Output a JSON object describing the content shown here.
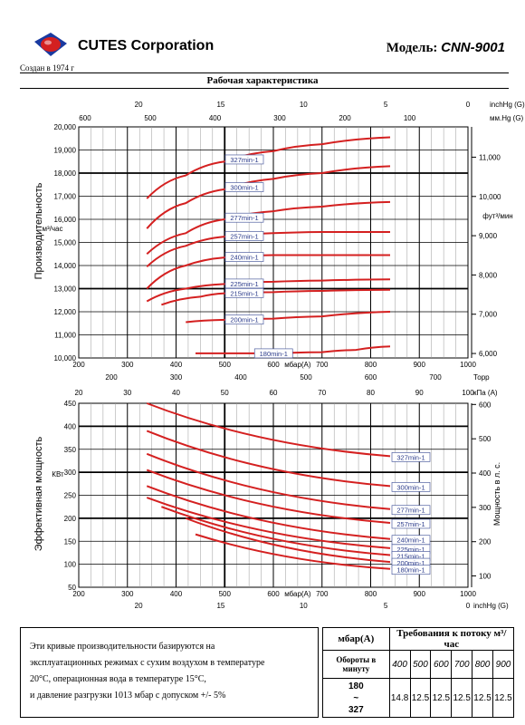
{
  "header": {
    "company": "CUTES Corporation",
    "founded": "Создан в 1974 г",
    "model_label": "Модель:",
    "model_value": "CNN-9001",
    "page_title": "Рабочая характеристика"
  },
  "colors": {
    "curve": "#d42020",
    "grid": "#000000",
    "logo_blue": "#1a3aa0",
    "logo_red": "#d42020"
  },
  "chart_data": [
    {
      "type": "line",
      "ylabel": "Производительность",
      "left_unit": "м³/час",
      "right_unit": "фут³/мин",
      "xlim": [
        200,
        1000
      ],
      "ylim": [
        10000,
        20000
      ],
      "x_ticks": [
        "200",
        "300",
        "400",
        "500",
        "600",
        "700",
        "800",
        "900",
        "1000"
      ],
      "x_axis_label": "мбар(А)",
      "y_ticks": [
        "10,000",
        "11,000",
        "12,000",
        "13,000",
        "14,000",
        "15,000",
        "16,000",
        "17,000",
        "18,000",
        "19,000",
        "20,000"
      ],
      "right_ticks": [
        {
          "label": "6,000",
          "y": 10194
        },
        {
          "label": "7,000",
          "y": 11893
        },
        {
          "label": "8,000",
          "y": 13592
        },
        {
          "label": "9,000",
          "y": 15291
        },
        {
          "label": "10,000",
          "y": 16990
        },
        {
          "label": "11,000",
          "y": 18689
        }
      ],
      "top_axis_inchHg": {
        "unit": "inchHg (G)",
        "ticks": [
          {
            "label": "20",
            "x": 323
          },
          {
            "label": "15",
            "x": 492
          },
          {
            "label": "10",
            "x": 662
          },
          {
            "label": "5",
            "x": 831
          },
          {
            "label": "0",
            "x": 1000
          }
        ]
      },
      "top_axis_mmHg": {
        "unit": "мм.Hg (G)",
        "ticks": [
          {
            "label": "600",
            "x": 213
          },
          {
            "label": "500",
            "x": 347
          },
          {
            "label": "400",
            "x": 480
          },
          {
            "label": "300",
            "x": 613
          },
          {
            "label": "200",
            "x": 747
          },
          {
            "label": "100",
            "x": 880
          }
        ]
      },
      "bottom_torr": {
        "unit": "Торр",
        "ticks": [
          {
            "label": "200",
            "x": 267
          },
          {
            "label": "300",
            "x": 400
          },
          {
            "label": "400",
            "x": 533
          },
          {
            "label": "500",
            "x": 667
          },
          {
            "label": "600",
            "x": 800
          },
          {
            "label": "700",
            "x": 933
          }
        ]
      },
      "series": [
        {
          "name": "327min-1",
          "x": [
            340,
            420,
            500,
            600,
            700,
            840
          ],
          "y": [
            16900,
            17900,
            18500,
            18950,
            19250,
            19550
          ]
        },
        {
          "name": "300min-1",
          "x": [
            340,
            420,
            500,
            600,
            700,
            840
          ],
          "y": [
            15600,
            16700,
            17300,
            17750,
            18000,
            18300
          ]
        },
        {
          "name": "277min-1",
          "x": [
            340,
            420,
            500,
            600,
            700,
            840
          ],
          "y": [
            14500,
            15400,
            16000,
            16350,
            16550,
            16750
          ]
        },
        {
          "name": "257min-1",
          "x": [
            340,
            420,
            500,
            600,
            700,
            840
          ],
          "y": [
            13950,
            14850,
            15250,
            15400,
            15450,
            15450
          ]
        },
        {
          "name": "240min-1",
          "x": [
            340,
            420,
            500,
            600,
            700,
            840
          ],
          "y": [
            13000,
            14000,
            14350,
            14450,
            14450,
            14450
          ]
        },
        {
          "name": "225min-1",
          "x": [
            340,
            420,
            500,
            600,
            700,
            840
          ],
          "y": [
            12450,
            13000,
            13200,
            13300,
            13350,
            13400
          ]
        },
        {
          "name": "215min-1",
          "x": [
            370,
            450,
            500,
            600,
            700,
            840
          ],
          "y": [
            12300,
            12650,
            12800,
            12850,
            12900,
            12950
          ]
        },
        {
          "name": "200min-1",
          "x": [
            420,
            500,
            600,
            700,
            840
          ],
          "y": [
            11550,
            11650,
            11700,
            11800,
            12000
          ]
        },
        {
          "name": "180min-1",
          "x": [
            440,
            500,
            600,
            700,
            770,
            840
          ],
          "y": [
            10200,
            10200,
            10200,
            10250,
            10350,
            10500
          ]
        }
      ]
    },
    {
      "type": "line",
      "ylabel": "Эффективная мощность",
      "left_unit": "КВт",
      "right_unit": "Мощность в л. с.",
      "xlim": [
        200,
        1000
      ],
      "ylim": [
        50,
        450
      ],
      "x_ticks": [
        "200",
        "300",
        "400",
        "500",
        "600",
        "700",
        "800",
        "900",
        "1000"
      ],
      "x_axis_label": "мбар(А)",
      "y_ticks": [
        "50",
        "100",
        "150",
        "200",
        "250",
        "300",
        "350",
        "400",
        "450"
      ],
      "right_ticks": [
        {
          "label": "100",
          "y": 74.6
        },
        {
          "label": "200",
          "y": 149.1
        },
        {
          "label": "300",
          "y": 223.7
        },
        {
          "label": "400",
          "y": 298.3
        },
        {
          "label": "500",
          "y": 372.8
        },
        {
          "label": "600",
          "y": 447.4
        }
      ],
      "top_axis_kPa": {
        "unit": "кПа (A)",
        "ticks": [
          "20",
          "30",
          "40",
          "50",
          "60",
          "70",
          "80",
          "90",
          "100"
        ]
      },
      "bottom_inchHg": {
        "unit": "inchHg (G)",
        "ticks": [
          {
            "label": "20",
            "x": 323
          },
          {
            "label": "15",
            "x": 492
          },
          {
            "label": "10",
            "x": 662
          },
          {
            "label": "5",
            "x": 831
          },
          {
            "label": "0",
            "x": 1000
          }
        ]
      },
      "series": [
        {
          "name": "327min-1",
          "x": [
            340,
            840
          ],
          "y": [
            450,
            335
          ]
        },
        {
          "name": "300min-1",
          "x": [
            340,
            840
          ],
          "y": [
            390,
            270
          ]
        },
        {
          "name": "277min-1",
          "x": [
            340,
            840
          ],
          "y": [
            340,
            220
          ]
        },
        {
          "name": "257min-1",
          "x": [
            340,
            840
          ],
          "y": [
            305,
            190
          ]
        },
        {
          "name": "240min-1",
          "x": [
            340,
            840
          ],
          "y": [
            270,
            155
          ]
        },
        {
          "name": "225min-1",
          "x": [
            340,
            840
          ],
          "y": [
            245,
            135
          ]
        },
        {
          "name": "215min-1",
          "x": [
            370,
            840
          ],
          "y": [
            225,
            120
          ]
        },
        {
          "name": "200min-1",
          "x": [
            420,
            840
          ],
          "y": [
            200,
            105
          ]
        },
        {
          "name": "180min-1",
          "x": [
            440,
            840
          ],
          "y": [
            165,
            90
          ]
        }
      ]
    }
  ],
  "note": {
    "lines": [
      "Эти кривые производительности базируются на",
      "эксплуатационных режимах с сухим воздухом в температуре",
      "20°C, операционная вода в температуре 15°C,",
      "и давление разгрузки 1013 мбар с допуском +/- 5%"
    ]
  },
  "flow_table": {
    "col_pressure": "мбар(А)",
    "col_requirement": "Требования к потоку м³/час",
    "speed_header": "Обороты в минуту",
    "pressures": [
      "400",
      "500",
      "600",
      "700",
      "800",
      "900"
    ],
    "speed_range": [
      "180",
      "~",
      "327"
    ],
    "values": [
      "14.8",
      "12.5",
      "12.5",
      "12.5",
      "12.5",
      "12.5"
    ]
  }
}
